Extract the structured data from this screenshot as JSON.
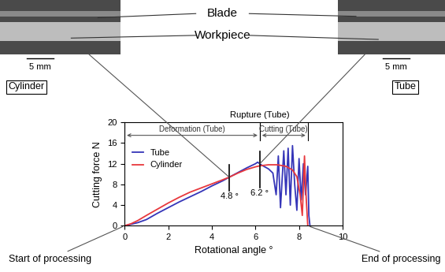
{
  "chart_data": {
    "type": "line",
    "x_label": "Rotational angle °",
    "y_label": "Cutting force N",
    "xlim": [
      0,
      10
    ],
    "xticks": [
      0,
      2,
      4,
      6,
      8,
      10
    ],
    "ylim": [
      0,
      20
    ],
    "yticks": [
      0,
      4,
      8,
      12,
      16,
      20
    ],
    "legend": "upper left",
    "series": [
      {
        "name": "Tube",
        "color": "#3535b8",
        "x": [
          0,
          0.3,
          0.6,
          1,
          1.5,
          2,
          2.5,
          3,
          3.5,
          4,
          4.5,
          4.8,
          5.2,
          5.6,
          6.0,
          6.1,
          6.3,
          6.6,
          6.8,
          6.95,
          7.05,
          7.15,
          7.3,
          7.4,
          7.5,
          7.6,
          7.7,
          7.8,
          7.9,
          8.0,
          8.1,
          8.2,
          8.3,
          8.4,
          8.45,
          8.5
        ],
        "values": [
          0,
          0.3,
          0.6,
          1.2,
          2.4,
          3.5,
          4.6,
          5.6,
          6.6,
          7.7,
          8.7,
          9.4,
          10.3,
          11.2,
          12.0,
          12.3,
          11.7,
          11.0,
          10.2,
          6.0,
          13.5,
          3.5,
          14.5,
          6.0,
          15.0,
          4.0,
          15.5,
          8.0,
          3.0,
          13.0,
          5.0,
          12.0,
          6.0,
          11.5,
          2.0,
          0.0
        ]
      },
      {
        "name": "Cylinder",
        "color": "#e8383d",
        "x": [
          0,
          0.3,
          0.6,
          1,
          1.5,
          2,
          2.5,
          3,
          3.5,
          4,
          4.5,
          4.8,
          5.2,
          5.6,
          6.0,
          6.2,
          6.6,
          7.0,
          7.4,
          7.7,
          7.9,
          8.05,
          8.15,
          8.25,
          8.32,
          8.4
        ],
        "values": [
          0,
          0.4,
          1.0,
          2.0,
          3.2,
          4.4,
          5.5,
          6.5,
          7.3,
          8.1,
          8.9,
          9.4,
          10.2,
          10.9,
          11.4,
          11.6,
          11.8,
          11.8,
          11.5,
          10.8,
          9.5,
          6.0,
          2.0,
          13.5,
          6.0,
          0.0
        ]
      }
    ],
    "phases": [
      {
        "label": "Deformation (Tube)",
        "start": 0,
        "end": 6.2
      },
      {
        "label": "Cutting (Tube)",
        "start": 6.2,
        "end": 8.4
      }
    ],
    "rupture_label": "Rupture (Tube)",
    "angle_markers": [
      {
        "x": 4.8,
        "label": "4.8 °"
      },
      {
        "x": 6.2,
        "label": "6.2 °"
      }
    ],
    "events": [
      {
        "x": 0,
        "label": "Start of processing"
      },
      {
        "x": 8.4,
        "label": "End of processing"
      }
    ],
    "photo_parts": [
      "Blade",
      "Workpiece"
    ],
    "photos": [
      {
        "name": "Cylinder",
        "scale": "5 mm"
      },
      {
        "name": "Tube",
        "scale": "5 mm"
      }
    ]
  }
}
